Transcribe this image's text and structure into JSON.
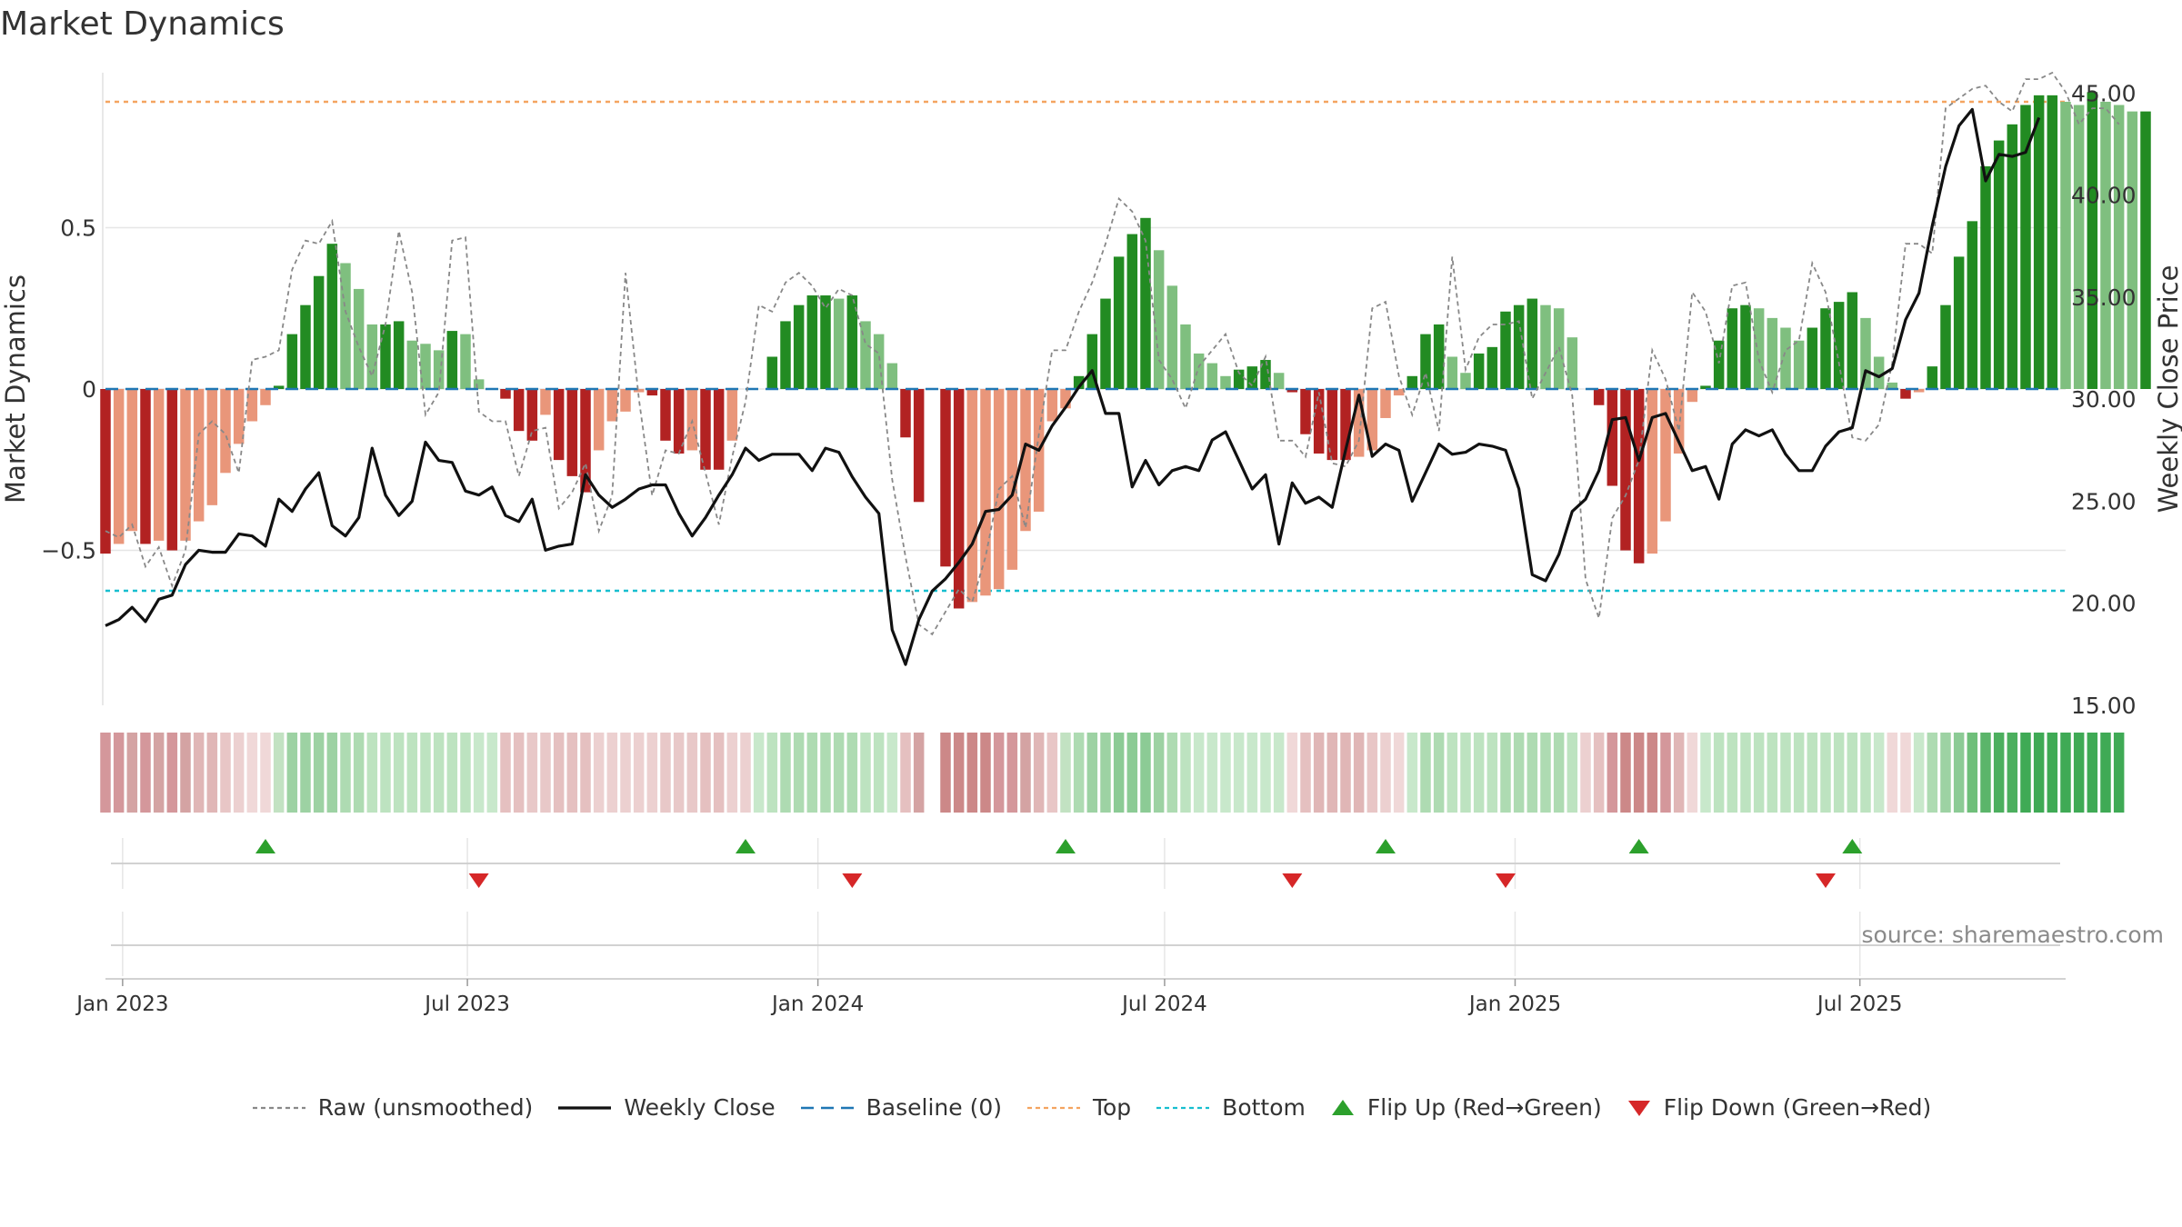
{
  "title": "Market Dynamics",
  "source_text": "source: sharemaestro.com",
  "legend": [
    {
      "key": "raw",
      "label": "Raw (unsmoothed)",
      "color": "#888888",
      "style": "dotted-line"
    },
    {
      "key": "close",
      "label": "Weekly Close",
      "color": "#111111",
      "style": "solid-line"
    },
    {
      "key": "baseline",
      "label": "Baseline (0)",
      "color": "#1f77b4",
      "style": "dashed-line"
    },
    {
      "key": "top",
      "label": "Top",
      "color": "#f4a460",
      "style": "dotted-line"
    },
    {
      "key": "bottom",
      "label": "Bottom",
      "color": "#17becf",
      "style": "dotted-line"
    },
    {
      "key": "flip_up",
      "label": "Flip Up (Red→Green)",
      "color": "#2ca02c",
      "style": "triangle-up"
    },
    {
      "key": "flip_down",
      "label": "Flip Down (Green→Red)",
      "color": "#d62728",
      "style": "triangle-down"
    }
  ],
  "chart_data": {
    "type": "bar",
    "title": "Market Dynamics",
    "ylabel": "Market Dynamics",
    "y2label": "Weekly Close Price",
    "ylim": [
      -0.98,
      0.98
    ],
    "y2lim": [
      15,
      46
    ],
    "yticks": [
      -0.5,
      0,
      0.5
    ],
    "ytick_labels": [
      "−0.5",
      "0",
      "0.5"
    ],
    "y2ticks": [
      15,
      20,
      25,
      30,
      35,
      40,
      45
    ],
    "y2tick_labels": [
      "15.00",
      "20.00",
      "25.00",
      "30.00",
      "35.00",
      "40.00",
      "45.00"
    ],
    "x_start": "2022-12-23",
    "x_end": "2025-10-17",
    "xticks": [
      "2023-01-01",
      "2023-07-01",
      "2024-01-01",
      "2024-07-01",
      "2025-01-01",
      "2025-07-01"
    ],
    "xtick_labels": [
      "Jan 2023",
      "Jul 2023",
      "Jan 2024",
      "Jul 2024",
      "Jan 2025",
      "Jul 2025"
    ],
    "top_level": 0.89,
    "bottom_level": -0.625,
    "baseline": 0,
    "grid": true,
    "legend_position": "bottom",
    "bar_colors": {
      "strong_red": "#b22222",
      "weak_red": "#e9967a",
      "strong_green": "#228b22",
      "weak_green": "#7fbf7f"
    },
    "series": [
      {
        "name": "Market Dynamics",
        "type": "bar",
        "start": "2022-12-23",
        "step_days": 7,
        "values": [
          -0.51,
          -0.48,
          -0.44,
          -0.48,
          -0.47,
          -0.5,
          -0.47,
          -0.41,
          -0.36,
          -0.26,
          -0.17,
          -0.1,
          -0.05,
          0.01,
          0.17,
          0.26,
          0.35,
          0.45,
          0.39,
          0.31,
          0.2,
          0.2,
          0.21,
          0.15,
          0.14,
          0.12,
          0.18,
          0.17,
          0.03,
          0,
          -0.03,
          -0.13,
          -0.16,
          -0.08,
          -0.22,
          -0.27,
          -0.32,
          -0.19,
          -0.1,
          -0.07,
          -0.01,
          -0.02,
          -0.16,
          -0.2,
          -0.19,
          -0.25,
          -0.25,
          -0.16,
          0,
          0,
          0.1,
          0.21,
          0.26,
          0.29,
          0.29,
          0.28,
          0.29,
          0.21,
          0.17,
          0.08,
          -0.15,
          -0.35,
          0,
          -0.55,
          -0.68,
          -0.66,
          -0.64,
          -0.62,
          -0.56,
          -0.44,
          -0.38,
          -0.1,
          -0.06,
          0.04,
          0.17,
          0.28,
          0.41,
          0.48,
          0.53,
          0.43,
          0.32,
          0.2,
          0.11,
          0.08,
          0.04,
          0.06,
          0.07,
          0.09,
          0.05,
          -0.01,
          -0.14,
          -0.2,
          -0.22,
          -0.22,
          -0.21,
          -0.19,
          -0.09,
          -0.02,
          0.04,
          0.17,
          0.2,
          0.1,
          0.05,
          0.11,
          0.13,
          0.24,
          0.26,
          0.28,
          0.26,
          0.25,
          0.16,
          0,
          -0.05,
          -0.3,
          -0.5,
          -0.54,
          -0.51,
          -0.41,
          -0.2,
          -0.04,
          0.01,
          0.15,
          0.25,
          0.26,
          0.25,
          0.22,
          0.19,
          0.15,
          0.19,
          0.25,
          0.27,
          0.3,
          0.22,
          0.1,
          0.02,
          -0.03,
          -0.01,
          0.07,
          0.26,
          0.41,
          0.52,
          0.69,
          0.77,
          0.82,
          0.88,
          0.91,
          0.91,
          0.89,
          0.88,
          0.92,
          0.89,
          0.88,
          0.86,
          0.86
        ]
      },
      {
        "name": "Raw (unsmoothed)",
        "type": "line",
        "start": "2022-12-23",
        "step_days": 7,
        "values": [
          -0.44,
          -0.46,
          -0.42,
          -0.55,
          -0.49,
          -0.61,
          -0.5,
          -0.14,
          -0.1,
          -0.14,
          -0.26,
          0.09,
          0.1,
          0.12,
          0.37,
          0.46,
          0.45,
          0.52,
          0.24,
          0.13,
          0.04,
          0.2,
          0.49,
          0.3,
          -0.08,
          -0.01,
          0.46,
          0.47,
          -0.07,
          -0.1,
          -0.1,
          -0.27,
          -0.13,
          -0.12,
          -0.37,
          -0.32,
          -0.23,
          -0.44,
          -0.33,
          0.36,
          -0.03,
          -0.33,
          -0.19,
          -0.2,
          -0.1,
          -0.26,
          -0.42,
          -0.21,
          -0.04,
          0.26,
          0.24,
          0.33,
          0.36,
          0.32,
          0.25,
          0.31,
          0.29,
          0.14,
          0.11,
          -0.28,
          -0.52,
          -0.73,
          -0.76,
          -0.69,
          -0.62,
          -0.66,
          -0.52,
          -0.31,
          -0.27,
          -0.43,
          -0.14,
          0.12,
          0.12,
          0.24,
          0.33,
          0.45,
          0.59,
          0.55,
          0.46,
          0.09,
          0.03,
          -0.06,
          0.07,
          0.12,
          0.17,
          0.05,
          0.01,
          0.1,
          -0.16,
          -0.16,
          -0.21,
          -0.01,
          -0.23,
          -0.24,
          -0.16,
          0.25,
          0.27,
          0.04,
          -0.08,
          0.05,
          -0.13,
          0.41,
          0.06,
          0.16,
          0.2,
          0.2,
          0.21,
          -0.03,
          0.05,
          0.13,
          -0.02,
          -0.59,
          -0.71,
          -0.4,
          -0.33,
          -0.22,
          0.12,
          0.03,
          -0.13,
          0.3,
          0.24,
          0.08,
          0.32,
          0.33,
          0.09,
          -0.01,
          0.12,
          0.15,
          0.39,
          0.3,
          0.08,
          -0.15,
          -0.16,
          -0.11,
          0.08,
          0.45,
          0.45,
          0.42,
          0.87,
          0.9,
          0.93,
          0.94,
          0.89,
          0.86,
          0.96,
          0.96,
          0.98,
          0.92,
          0.82,
          0.87,
          0.87,
          0.82
        ]
      },
      {
        "name": "Weekly Close",
        "type": "line",
        "axis": "right",
        "start": "2022-12-23",
        "step_days": 7,
        "values": [
          18.9,
          19.2,
          19.8,
          19.1,
          20.2,
          20.4,
          21.9,
          22.6,
          22.5,
          22.5,
          23.4,
          23.3,
          22.8,
          25.1,
          24.5,
          25.6,
          26.4,
          23.8,
          23.3,
          24.2,
          27.6,
          25.3,
          24.3,
          25.0,
          27.9,
          27.0,
          26.9,
          25.5,
          25.3,
          25.7,
          24.3,
          24.0,
          25.1,
          22.6,
          22.8,
          22.9,
          26.3,
          25.3,
          24.7,
          25.1,
          25.6,
          25.8,
          25.8,
          24.4,
          23.3,
          24.2,
          25.3,
          26.3,
          27.6,
          27.0,
          27.3,
          27.3,
          27.3,
          26.5,
          27.6,
          27.4,
          26.2,
          25.2,
          24.4,
          18.7,
          17.0,
          19.2,
          20.6,
          21.2,
          22.0,
          22.9,
          24.5,
          24.6,
          25.3,
          27.8,
          27.5,
          28.7,
          29.6,
          30.6,
          31.4,
          29.3,
          29.3,
          25.7,
          27.0,
          25.8,
          26.5,
          26.7,
          26.5,
          28.0,
          28.4,
          27.0,
          25.6,
          26.3,
          22.9,
          25.9,
          24.9,
          25.2,
          24.7,
          27.5,
          30.2,
          27.2,
          27.8,
          27.5,
          25.0,
          26.4,
          27.8,
          27.3,
          27.4,
          27.8,
          27.7,
          27.5,
          25.6,
          21.4,
          21.1,
          22.4,
          24.5,
          25.1,
          26.5,
          29.0,
          29.1,
          27.0,
          29.1,
          29.3,
          27.9,
          26.5,
          26.7,
          25.1,
          27.8,
          28.5,
          28.2,
          28.5,
          27.3,
          26.5,
          26.5,
          27.7,
          28.4,
          28.6,
          31.4,
          31.1,
          31.5,
          33.9,
          35.2,
          38.5,
          41.4,
          43.4,
          44.2,
          40.7,
          42.0,
          41.9,
          42.1,
          43.8
        ]
      }
    ],
    "regime_strip": {
      "start": "2022-12-23",
      "step_days": 7,
      "colors": [
        "#d4979b",
        "#d4979b",
        "#d4a3a3",
        "#d4979b",
        "#d4a3a3",
        "#d4979b",
        "#d4a3a3",
        "#e0b6b6",
        "#e0b6b6",
        "#e8c6c6",
        "#ecd0d0",
        "#f0d8d8",
        "#f0d8d8",
        "#c2e2c2",
        "#9dd2a3",
        "#9dd2a3",
        "#9dd2a3",
        "#9dd2a3",
        "#aedbb2",
        "#aedbb2",
        "#bde3c0",
        "#bde3c0",
        "#bde3c0",
        "#bde3c0",
        "#bde3c0",
        "#bde3c0",
        "#bde3c0",
        "#bde3c0",
        "#c8e8cb",
        "#c8e8cb",
        "#e5c0c0",
        "#e5c0c0",
        "#e8c8c8",
        "#e8c8c8",
        "#e5c0c0",
        "#e5c0c0",
        "#e5c0c0",
        "#ecd0d0",
        "#ecd0d0",
        "#ecd0d0",
        "#ecd0d0",
        "#ecd0d0",
        "#e8c8c8",
        "#e8c8c8",
        "#e8c8c8",
        "#e5c0c0",
        "#e5c0c0",
        "#ecd0d0",
        "#ecd0d0",
        "#c8e8cb",
        "#bde3c0",
        "#aedbb2",
        "#aedbb2",
        "#aedbb2",
        "#aedbb2",
        "#aedbb2",
        "#aedbb2",
        "#bde3c0",
        "#bde3c0",
        "#c8e8cb",
        "#e5c0c0",
        "#d4a3a3",
        "#ffffff",
        "#cc8888",
        "#cc8888",
        "#cc8888",
        "#cc8888",
        "#d4979b",
        "#d4979b",
        "#d4a3a3",
        "#e0b6b6",
        "#e8c6c6",
        "#c2e2c2",
        "#aedbb2",
        "#9dd2a3",
        "#9dd2a3",
        "#8ccb95",
        "#8ccb95",
        "#8ccb95",
        "#9dd2a3",
        "#aedbb2",
        "#bde3c0",
        "#c8e8cb",
        "#c8e8cb",
        "#c8e8cb",
        "#c8e8cb",
        "#c8e8cb",
        "#c8e8cb",
        "#c8e8cb",
        "#f0d8d8",
        "#e5c0c0",
        "#e0b6b6",
        "#e0b6b6",
        "#e0b6b6",
        "#e0b6b6",
        "#e8c6c6",
        "#ecd0d0",
        "#f0d8d8",
        "#c8e8cb",
        "#aedbb2",
        "#aedbb2",
        "#bde3c0",
        "#bde3c0",
        "#bde3c0",
        "#bde3c0",
        "#aedbb2",
        "#aedbb2",
        "#aedbb2",
        "#aedbb2",
        "#aedbb2",
        "#bde3c0",
        "#ecd0d0",
        "#e5c0c0",
        "#d4979b",
        "#cc8888",
        "#cc8888",
        "#cc8888",
        "#d4979b",
        "#e0b6b6",
        "#f0d8d8",
        "#c8e8cb",
        "#bde3c0",
        "#bde3c0",
        "#bde3c0",
        "#bde3c0",
        "#bde3c0",
        "#bde3c0",
        "#bde3c0",
        "#bde3c0",
        "#bde3c0",
        "#bde3c0",
        "#bde3c0",
        "#bde3c0",
        "#c8e8cb",
        "#f0d8d8",
        "#f0d8d8",
        "#c8e8cb",
        "#aedbb2",
        "#9dd2a3",
        "#8ccb95",
        "#6fbf7a",
        "#5bb56a",
        "#4caf5e",
        "#4caf5e",
        "#3faa55",
        "#3faa55",
        "#3faa55",
        "#3faa55",
        "#3faa55",
        "#3faa55",
        "#3faa55",
        "#3faa55"
      ]
    },
    "flip_up_dates": [
      "2023-03-17",
      "2023-11-24",
      "2024-05-10",
      "2024-10-25",
      "2025-03-07",
      "2025-06-27"
    ],
    "flip_down_dates": [
      "2023-07-07",
      "2024-01-19",
      "2024-09-06",
      "2024-12-27",
      "2025-06-13"
    ]
  }
}
